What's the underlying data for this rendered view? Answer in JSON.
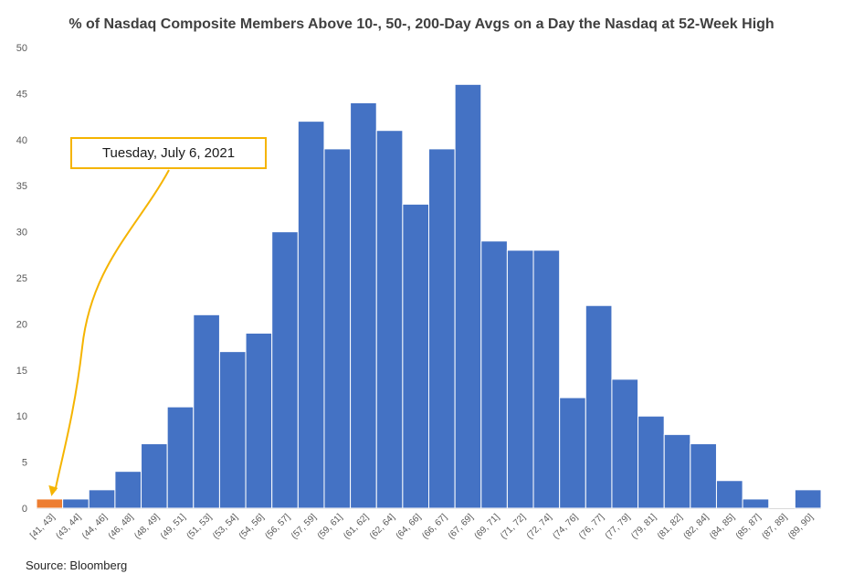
{
  "title": "% of Nasdaq Composite Members Above 10-, 50-, 200-Day Avgs on a Day the Nasdaq at 52-Week High",
  "source": "Source: Bloomberg",
  "annotation": {
    "text": "Tuesday, July 6, 2021",
    "target_category": "[41, 43]"
  },
  "colors": {
    "bar": "#4472c4",
    "highlight": "#ed7d31",
    "annotation": "#f5b400",
    "axis_text": "#595959"
  },
  "chart_data": {
    "type": "bar",
    "title": "% of Nasdaq Composite Members Above 10-, 50-, 200-Day Avgs on a Day the Nasdaq at 52-Week High",
    "xlabel": "",
    "ylabel": "",
    "ylim": [
      0,
      50
    ],
    "yticks": [
      0,
      5,
      10,
      15,
      20,
      25,
      30,
      35,
      40,
      45,
      50
    ],
    "grid": false,
    "categories": [
      "[41, 43]",
      "(43, 44]",
      "(44, 46]",
      "(46, 48]",
      "(48, 49]",
      "(49, 51]",
      "(51, 53]",
      "(53, 54]",
      "(54, 56]",
      "(56, 57]",
      "(57, 59]",
      "(59, 61]",
      "(61, 62]",
      "(62, 64]",
      "(64, 66]",
      "(66, 67]",
      "(67, 69]",
      "(69, 71]",
      "(71, 72]",
      "(72, 74]",
      "(74, 76]",
      "(76, 77]",
      "(77, 79]",
      "(79, 81]",
      "(81, 82]",
      "(82, 84]",
      "(84, 85]",
      "(85, 87]",
      "(87, 89]",
      "(89, 90]"
    ],
    "values": [
      1,
      1,
      2,
      4,
      7,
      11,
      21,
      17,
      19,
      30,
      42,
      39,
      44,
      41,
      33,
      39,
      46,
      29,
      28,
      28,
      12,
      22,
      14,
      10,
      8,
      7,
      3,
      1,
      0,
      2
    ],
    "highlight_index": 0
  }
}
